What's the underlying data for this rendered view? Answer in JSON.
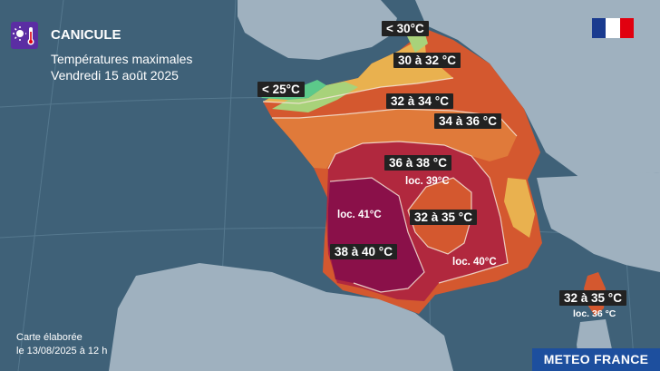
{
  "header": {
    "title": "CANICULE",
    "subtitle_line1": "Températures maximales",
    "subtitle_line2": "Vendredi 15 août 2025",
    "icon": "thermometer-sun-icon"
  },
  "flag_icon": "marianne-flag-icon",
  "labels": {
    "lt30": "< 30°C",
    "r30_32": "30 à 32 °C",
    "lt25": "< 25°C",
    "r32_34": "32 à 34 °C",
    "r34_36": "34 à 36 °C",
    "r36_38": "36 à 38 °C",
    "loc39": "loc. 39°C",
    "loc41": "loc. 41°C",
    "r32_35_centre": "32 à 35 °C",
    "r38_40": "38 à 40 °C",
    "loc40": "loc. 40°C",
    "r32_35_corse": "32 à 35 °C",
    "loc36_corse": "loc. 36 °C"
  },
  "credit": {
    "line1": "Carte élaborée",
    "line2": "le 13/08/2025 à 12 h"
  },
  "brand": "METEO FRANCE",
  "colors": {
    "sea": "#3f6178",
    "land_foreign": "#9fb1bf",
    "lt25": "#5cc98a",
    "r25_30": "#a8d27a",
    "r30_32": "#e9b14f",
    "r32_34": "#e07a3a",
    "r34_36": "#d4582f",
    "r36_38": "#b1283e",
    "r38_40": "#8a1049",
    "accent": "#5b2ea3"
  }
}
